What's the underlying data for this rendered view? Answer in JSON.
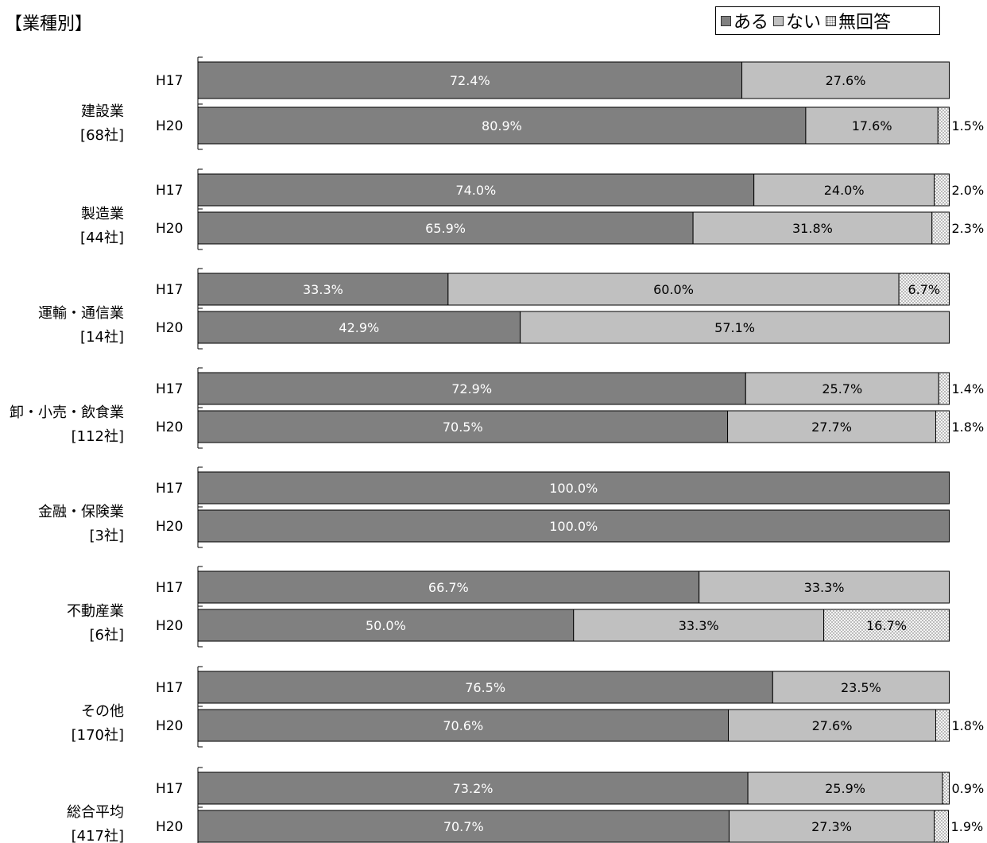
{
  "title": "【業種別】",
  "legend": {
    "items": [
      {
        "label": "ある",
        "color": "#808080"
      },
      {
        "label": "ない",
        "color": "#c0c0c0"
      },
      {
        "label": "無回答",
        "color": "#f2f2f2",
        "pattern": "dots"
      }
    ]
  },
  "chart_data": {
    "type": "bar",
    "orientation": "horizontal",
    "stacked": "100%",
    "title": "【業種別】",
    "series_names": [
      "ある",
      "ない",
      "無回答"
    ],
    "groups": [
      {
        "name": "建設業",
        "count": "[68社]",
        "rows": [
          {
            "label": "H17",
            "values": [
              72.4,
              27.6,
              null
            ],
            "labels": [
              "72.4%",
              "27.6%",
              ""
            ]
          },
          {
            "label": "H20",
            "values": [
              80.9,
              17.6,
              1.5
            ],
            "labels": [
              "80.9%",
              "17.6%",
              "1.5%"
            ]
          }
        ]
      },
      {
        "name": "製造業",
        "count": "[44社]",
        "rows": [
          {
            "label": "H17",
            "values": [
              74.0,
              24.0,
              2.0
            ],
            "labels": [
              "74.0%",
              "24.0%",
              "2.0%"
            ]
          },
          {
            "label": "H20",
            "values": [
              65.9,
              31.8,
              2.3
            ],
            "labels": [
              "65.9%",
              "31.8%",
              "2.3%"
            ]
          }
        ]
      },
      {
        "name": "運輸・通信業",
        "count": "[14社]",
        "rows": [
          {
            "label": "H17",
            "values": [
              33.3,
              60.0,
              6.7
            ],
            "labels": [
              "33.3%",
              "60.0%",
              "6.7%"
            ]
          },
          {
            "label": "H20",
            "values": [
              42.9,
              57.1,
              null
            ],
            "labels": [
              "42.9%",
              "57.1%",
              ""
            ]
          }
        ]
      },
      {
        "name": "卸・小売・飲食業",
        "count": "[112社]",
        "rows": [
          {
            "label": "H17",
            "values": [
              72.9,
              25.7,
              1.4
            ],
            "labels": [
              "72.9%",
              "25.7%",
              "1.4%"
            ]
          },
          {
            "label": "H20",
            "values": [
              70.5,
              27.7,
              1.8
            ],
            "labels": [
              "70.5%",
              "27.7%",
              "1.8%"
            ]
          }
        ]
      },
      {
        "name": "金融・保険業",
        "count": "[3社]",
        "rows": [
          {
            "label": "H17",
            "values": [
              100.0,
              null,
              null
            ],
            "labels": [
              "100.0%",
              "",
              ""
            ]
          },
          {
            "label": "H20",
            "values": [
              100.0,
              null,
              null
            ],
            "labels": [
              "100.0%",
              "",
              ""
            ]
          }
        ]
      },
      {
        "name": "不動産業",
        "count": "[6社]",
        "rows": [
          {
            "label": "H17",
            "values": [
              66.7,
              33.3,
              null
            ],
            "labels": [
              "66.7%",
              "33.3%",
              ""
            ]
          },
          {
            "label": "H20",
            "values": [
              50.0,
              33.3,
              16.7
            ],
            "labels": [
              "50.0%",
              "33.3%",
              "16.7%"
            ]
          }
        ]
      },
      {
        "name": "その他",
        "count": "[170社]",
        "rows": [
          {
            "label": "H17",
            "values": [
              76.5,
              23.5,
              null
            ],
            "labels": [
              "76.5%",
              "23.5%",
              ""
            ]
          },
          {
            "label": "H20",
            "values": [
              70.6,
              27.6,
              1.8
            ],
            "labels": [
              "70.6%",
              "27.6%",
              "1.8%"
            ]
          }
        ]
      },
      {
        "name": "総合平均",
        "count": "[417社]",
        "rows": [
          {
            "label": "H17",
            "values": [
              73.2,
              25.9,
              0.9
            ],
            "labels": [
              "73.2%",
              "25.9%",
              "0.9%"
            ]
          },
          {
            "label": "H20",
            "values": [
              70.7,
              27.3,
              1.9
            ],
            "labels": [
              "70.7%",
              "27.3%",
              "1.9%"
            ]
          }
        ]
      }
    ]
  }
}
